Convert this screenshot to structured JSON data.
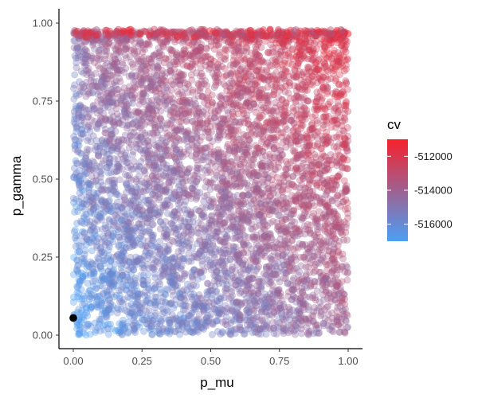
{
  "chart_data": {
    "type": "scatter",
    "xlabel": "p_mu",
    "ylabel": "p_gamma",
    "xlim": [
      0,
      1
    ],
    "ylim": [
      0,
      1
    ],
    "x_ticks": [
      0.0,
      0.25,
      0.5,
      0.75,
      1.0
    ],
    "x_tick_labels": [
      "0.00",
      "0.25",
      "0.50",
      "0.75",
      "1.00"
    ],
    "y_ticks": [
      0.0,
      0.25,
      0.5,
      0.75,
      1.0
    ],
    "y_tick_labels": [
      "0.00",
      "0.25",
      "0.50",
      "0.75",
      "1.00"
    ],
    "grid": false,
    "legend": {
      "title": "cv",
      "position": "right",
      "range": [
        -517000,
        -511000
      ],
      "breaks": [
        -512000,
        -514000,
        -516000
      ],
      "break_labels": [
        "-512000",
        "-514000",
        "-516000"
      ],
      "low_color": "#4a9ff5",
      "high_color": "#f5222b"
    },
    "point_count_approx": 6000,
    "point_alpha": 0.35,
    "point_spread": "uniform over [0,1] x [0,1]",
    "cv_trend": "cv rises with p_mu and p_gamma; red points band near p_gamma = 0.97",
    "highlight_point": {
      "x": 0.0,
      "y": 0.055,
      "color": "#000000"
    }
  }
}
